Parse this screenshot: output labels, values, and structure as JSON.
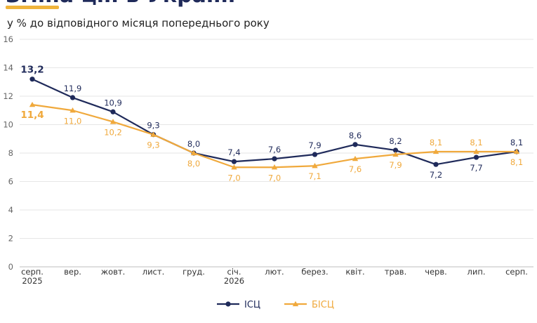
{
  "header": {
    "title": "Зміна цін в Україні",
    "subtitle": "у % до відповідного місяця попереднього року",
    "accent_color": "#f0b43c"
  },
  "chart_data": {
    "type": "line",
    "categories": [
      "серп.",
      "вер.",
      "жовт.",
      "лист.",
      "груд.",
      "січ.",
      "лют.",
      "берез.",
      "квіт.",
      "трав.",
      "черв.",
      "лип.",
      "серп."
    ],
    "year_labels": [
      {
        "index": 0,
        "label": "2025"
      },
      {
        "index": 5,
        "label": "2026"
      }
    ],
    "ylim": [
      0,
      16
    ],
    "yticks": [
      0,
      2,
      4,
      6,
      8,
      10,
      12,
      14,
      16
    ],
    "grid": true,
    "legend_position": "bottom",
    "series": [
      {
        "name": "ІСЦ",
        "color": "#1f2a5a",
        "marker": "circle",
        "values": [
          13.2,
          11.9,
          10.9,
          9.3,
          8.0,
          7.4,
          7.6,
          7.9,
          8.6,
          8.2,
          7.2,
          7.7,
          8.1
        ],
        "labels": [
          "13,2",
          "11,9",
          "10,9",
          "9,3",
          "8,0",
          "7,4",
          "7,6",
          "7,9",
          "8,6",
          "8,2",
          "7,2",
          "7,7",
          "8,1"
        ]
      },
      {
        "name": "БІСЦ",
        "color": "#f0a93c",
        "marker": "triangle",
        "values": [
          11.4,
          11.0,
          10.2,
          9.3,
          8.0,
          7.0,
          7.0,
          7.1,
          7.6,
          7.9,
          8.1,
          8.1,
          8.1
        ],
        "labels": [
          "11,4",
          "11,0",
          "10,2",
          "9,3",
          "8,0",
          "7,0",
          "7,0",
          "7,1",
          "7,6",
          "7,9",
          "8,1",
          "8,1",
          "8,1"
        ]
      }
    ]
  }
}
